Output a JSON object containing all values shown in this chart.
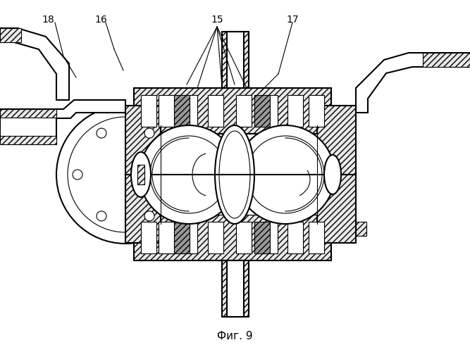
{
  "title": "Фиг. 9",
  "bg_color": "#ffffff",
  "line_color": "#000000",
  "gray_fill": "#aaaaaa",
  "light_gray": "#e8e8e8",
  "dark_gray": "#999999",
  "fig_label_fontsize": 11,
  "lw_main": 1.5,
  "lw_thin": 0.8
}
